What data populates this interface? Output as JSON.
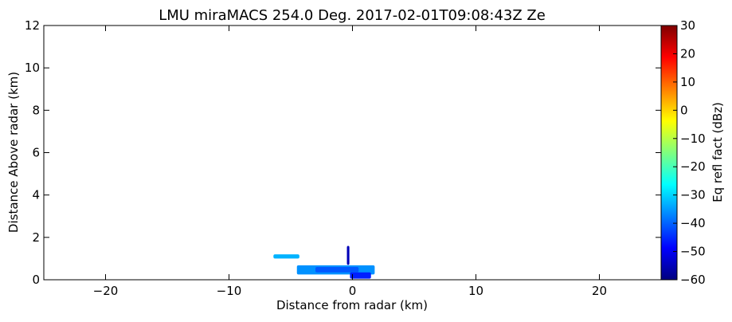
{
  "chart_data": {
    "type": "heatmap",
    "title": "LMU miraMACS 254.0 Deg. 2017-02-01T09:08:43Z  Ze",
    "xlabel": "Distance from radar (km)",
    "ylabel": "Distance Above radar  (km)",
    "xlim": [
      -25,
      25
    ],
    "ylim": [
      0,
      12
    ],
    "x_ticks": [
      -20,
      -10,
      0,
      10,
      20
    ],
    "x_tick_labels": [
      "−20",
      "−10",
      "0",
      "10",
      "20"
    ],
    "y_ticks": [
      0,
      2,
      4,
      6,
      8,
      10,
      12
    ],
    "y_tick_labels": [
      "0",
      "2",
      "4",
      "6",
      "8",
      "10",
      "12"
    ],
    "grid": false,
    "colorbar": {
      "label": "Eq refl fact (dBz)",
      "range": [
        -60,
        30
      ],
      "ticks": [
        30,
        20,
        10,
        0,
        -10,
        -20,
        -30,
        -40,
        -50,
        -60
      ],
      "tick_labels": [
        "30",
        "20",
        "10",
        "0",
        "−10",
        "−20",
        "−30",
        "−40",
        "−50",
        "−60"
      ],
      "colormap": "jet",
      "colors": [
        "#00007f",
        "#0000ff",
        "#007fff",
        "#00ffff",
        "#7fff7f",
        "#ffff00",
        "#ff7f00",
        "#ff0000",
        "#7f0000"
      ]
    },
    "echoes": [
      {
        "x_range": [
          -6.4,
          -4.3
        ],
        "y_range": [
          1.0,
          1.2
        ],
        "dbz": -33
      },
      {
        "x_range": [
          -4.5,
          1.8
        ],
        "y_range": [
          0.25,
          0.68
        ],
        "dbz": -36
      },
      {
        "x_range": [
          -3.0,
          0.5
        ],
        "y_range": [
          0.35,
          0.6
        ],
        "dbz": -41
      },
      {
        "x_range": [
          -0.2,
          1.5
        ],
        "y_range": [
          0.05,
          0.35
        ],
        "dbz": -46
      },
      {
        "x_range": [
          -0.45,
          -0.25
        ],
        "y_range": [
          0.7,
          1.6
        ],
        "dbz": -55
      }
    ]
  }
}
